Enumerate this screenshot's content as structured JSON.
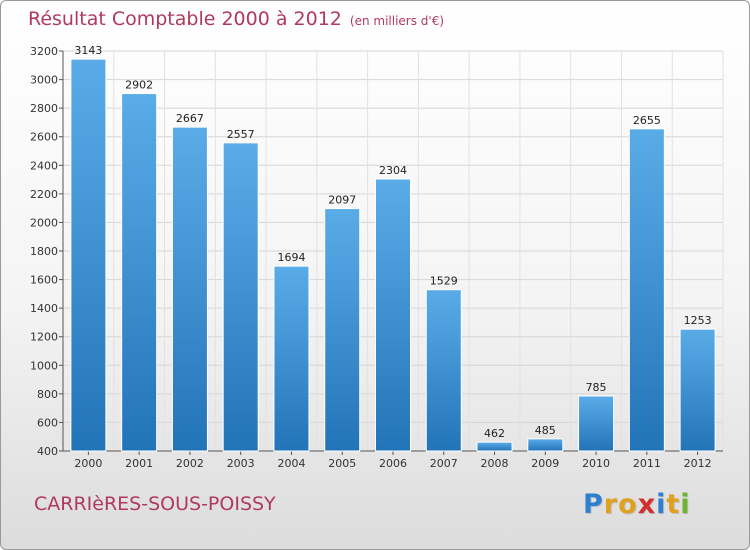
{
  "header": {
    "title": "Résultat Comptable 2000 à 2012",
    "unit": "(en milliers d'€)"
  },
  "footer": {
    "town": "CARRIèRES-SOUS-POISSY",
    "logo_letters": [
      "P",
      "r",
      "o",
      "x",
      "i",
      "t",
      "i"
    ],
    "logo_colors": [
      "#2f7fd1",
      "#e0a020",
      "#e0a020",
      "#d23030",
      "#2f7fd1",
      "#e0a020",
      "#6cb52d"
    ]
  },
  "colors": {
    "bar_light": "#5aace8",
    "bar_dark": "#2274b8",
    "title": "#b03a5e"
  },
  "chart_data": {
    "type": "bar",
    "title": "Résultat Comptable 2000 à 2012",
    "subtitle": "(en milliers d'€)",
    "xlabel": "",
    "ylabel": "",
    "categories": [
      "2000",
      "2001",
      "2002",
      "2003",
      "2004",
      "2005",
      "2006",
      "2007",
      "2008",
      "2009",
      "2010",
      "2011",
      "2012"
    ],
    "values": [
      3143,
      2902,
      2667,
      2557,
      1694,
      2097,
      2304,
      1529,
      462,
      485,
      785,
      2655,
      1253
    ],
    "ylim": [
      400,
      3200
    ],
    "yticks": [
      400,
      600,
      800,
      1000,
      1200,
      1400,
      1600,
      1800,
      2000,
      2200,
      2400,
      2600,
      2800,
      3000,
      3200
    ],
    "grid": true
  }
}
